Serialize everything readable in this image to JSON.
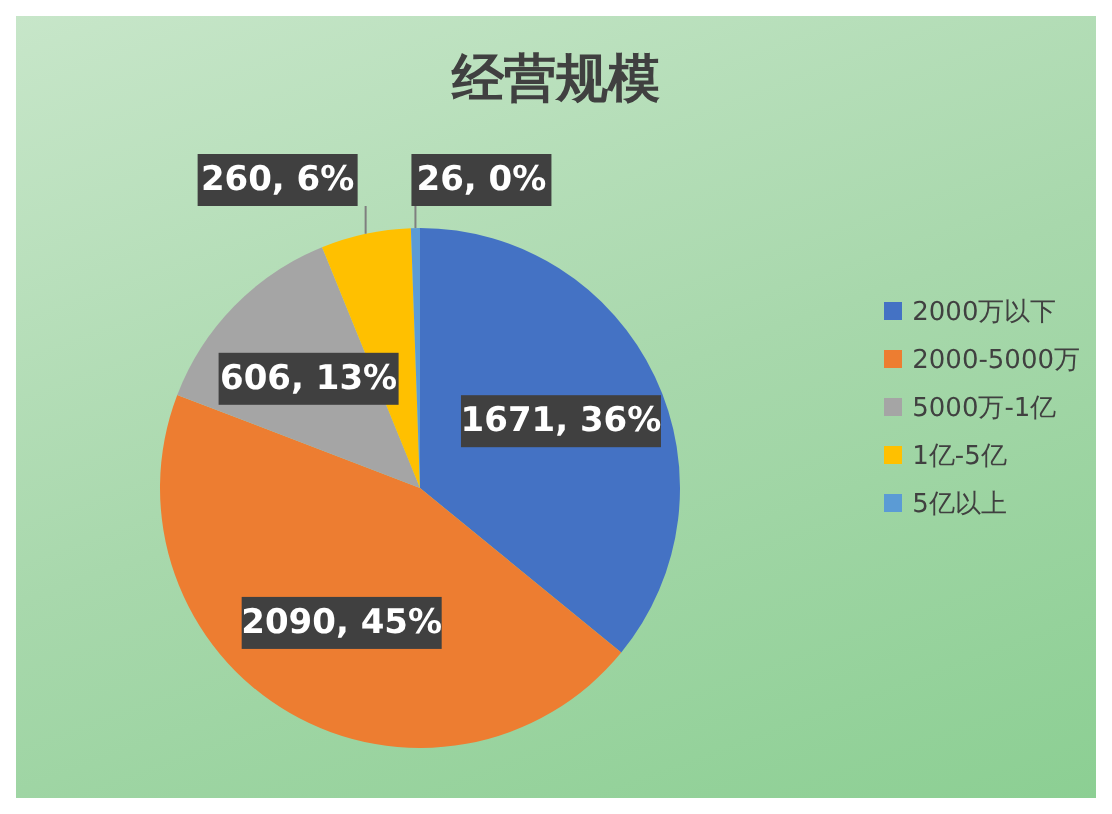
{
  "chart_data": {
    "type": "pie",
    "title": "经营规模",
    "categories": [
      "2000万以下",
      "2000-5000万",
      "5000万-1亿",
      "1亿-5亿",
      "5亿以上"
    ],
    "values": [
      1671,
      2090,
      606,
      260,
      26
    ],
    "value_labels": [
      "1671, 36%",
      "2090, 45%",
      "606, 13%",
      "260, 6%",
      "26, 0%"
    ],
    "colors": [
      "#4472c4",
      "#ed7d31",
      "#a5a5a5",
      "#ffc000",
      "#5b9bd5"
    ],
    "legend": "right"
  }
}
